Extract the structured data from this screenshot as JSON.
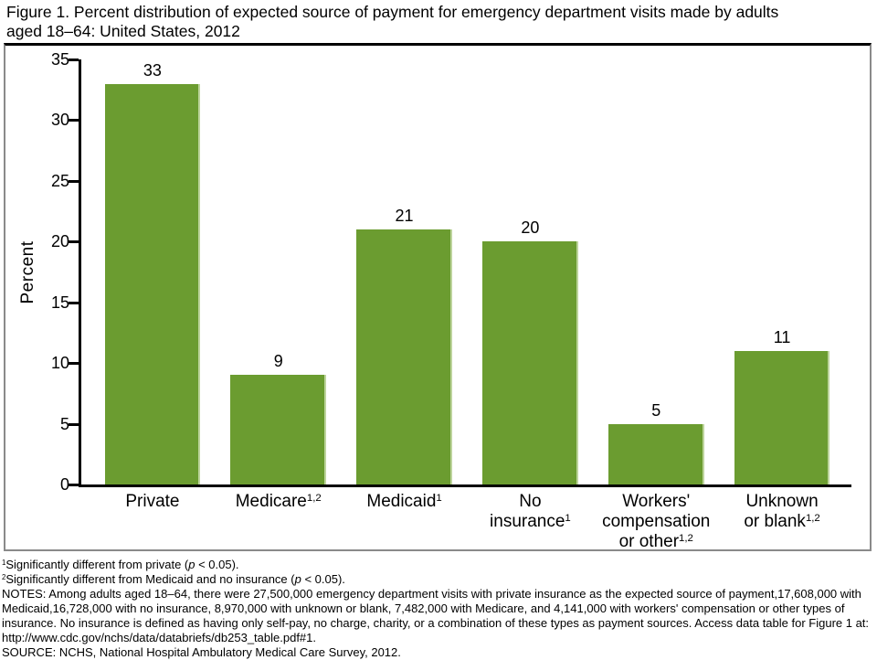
{
  "figure": {
    "title": "Figure 1. Percent distribution of expected source of payment for emergency department visits made by adults aged 18–64: United States, 2012"
  },
  "colors": {
    "bar": "#6B9C30",
    "bar_edge": "#BDD49C",
    "axis": "#000000",
    "frame": "#8A8A8A",
    "frame_top": "#000000",
    "text": "#000000"
  },
  "chart_data": {
    "type": "bar",
    "title": "Figure 1. Percent distribution of expected source of payment for emergency department visits made by adults aged 18–64: United States, 2012",
    "xlabel": "",
    "ylabel": "Percent",
    "ylim": [
      0,
      35
    ],
    "yticks": [
      0,
      5,
      10,
      15,
      20,
      25,
      30,
      35
    ],
    "grid": false,
    "legend": "none",
    "categories": [
      "Private",
      "Medicare",
      "Medicaid",
      "No insurance",
      "Workers' compensation or other",
      "Unknown or blank"
    ],
    "category_labels": [
      [
        "Private"
      ],
      [
        "Medicare^{1,2}"
      ],
      [
        "Medicaid^{1}"
      ],
      [
        "No",
        "insurance^{1}"
      ],
      [
        "Workers'",
        "compensation",
        "or other^{1,2}"
      ],
      [
        "Unknown",
        "or blank^{1,2}"
      ]
    ],
    "values": [
      33,
      9,
      21,
      20,
      5,
      11
    ],
    "bar_labels": [
      "33",
      "9",
      "21",
      "20",
      "5",
      "11"
    ]
  },
  "footnotes": [
    "^{1}Significantly different from private (*p* < 0.05).",
    "^{2}Significantly different from Medicaid and no insurance (*p* < 0.05).",
    "NOTES: Among adults aged 18–64, there were 27,500,000 emergency department visits with private insurance as the expected source of payment,17,608,000 with Medicaid,16,728,000 with no insurance, 8,970,000 with unknown or blank, 7,482,000 with Medicare, and 4,141,000 with workers' compensation or other types of insurance. No insurance is defined as having only self-pay, no charge, charity, or a combination of these types as payment sources. Access data table for Figure 1 at: http://www.cdc.gov/nchs/data/databriefs/db253_table.pdf#1.",
    "SOURCE: NCHS, National Hospital Ambulatory Medical Care Survey, 2012."
  ]
}
